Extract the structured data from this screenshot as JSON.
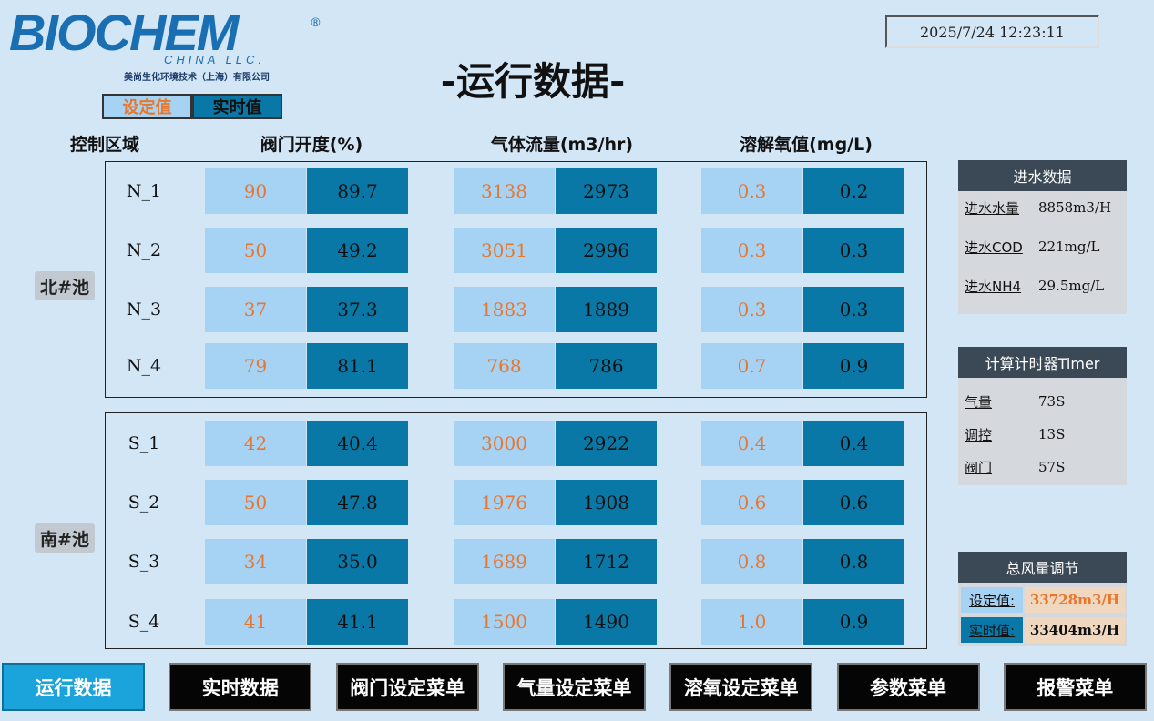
{
  "header": {
    "logo": "BIOCHEM",
    "logo_mark": "®",
    "logo_sub": "CHINA LLC.",
    "company": "美尚生化环境技术（上海）有限公司",
    "title": "-运行数据-",
    "datetime": "2025/7/24 12:23:11"
  },
  "toggle": [
    "设定值",
    "实时值"
  ],
  "columns": [
    "控制区域",
    "阀门开度(%)",
    "气体流量(m3/hr)",
    "溶解氧值(mg/L)"
  ],
  "zones": [
    {
      "label": "北#池",
      "rows": [
        {
          "name": "N_1",
          "cells": [
            "90",
            "89.7",
            "3138",
            "2973",
            "0.3",
            "0.2"
          ]
        },
        {
          "name": "N_2",
          "cells": [
            "50",
            "49.2",
            "3051",
            "2996",
            "0.3",
            "0.3"
          ]
        },
        {
          "name": "N_3",
          "cells": [
            "37",
            "37.3",
            "1883",
            "1889",
            "0.3",
            "0.3"
          ]
        },
        {
          "name": "N_4",
          "cells": [
            "79",
            "81.1",
            "768",
            "786",
            "0.7",
            "0.9"
          ]
        }
      ]
    },
    {
      "label": "南#池",
      "rows": [
        {
          "name": "S_1",
          "cells": [
            "42",
            "40.4",
            "3000",
            "2922",
            "0.4",
            "0.4"
          ]
        },
        {
          "name": "S_2",
          "cells": [
            "50",
            "47.8",
            "1976",
            "1908",
            "0.6",
            "0.6"
          ]
        },
        {
          "name": "S_3",
          "cells": [
            "34",
            "35.0",
            "1689",
            "1712",
            "0.8",
            "0.8"
          ]
        },
        {
          "name": "S_4",
          "cells": [
            "41",
            "41.1",
            "1500",
            "1490",
            "1.0",
            "0.9"
          ]
        }
      ]
    }
  ],
  "inlet": {
    "title": "进水数据",
    "items": [
      {
        "label": "进水水量",
        "value": "8858m3/H"
      },
      {
        "label": "进水COD",
        "value": "221mg/L"
      },
      {
        "label": "进水NH4",
        "value": "29.5mg/L"
      }
    ]
  },
  "timer": {
    "title": "计算计时器Timer",
    "items": [
      {
        "label": "气量",
        "value": "73S"
      },
      {
        "label": "调控",
        "value": "13S"
      },
      {
        "label": "阀门",
        "value": "57S"
      }
    ]
  },
  "total_air": {
    "title": "总风量调节",
    "items": [
      {
        "label": "设定值:",
        "value": "33728m3/H"
      },
      {
        "label": "实时值:",
        "value": "33404m3/H"
      }
    ]
  },
  "nav": [
    "运行数据",
    "实时数据",
    "阀门设定菜单",
    "气量设定菜单",
    "溶氧设定菜单",
    "参数菜单",
    "报警菜单"
  ]
}
